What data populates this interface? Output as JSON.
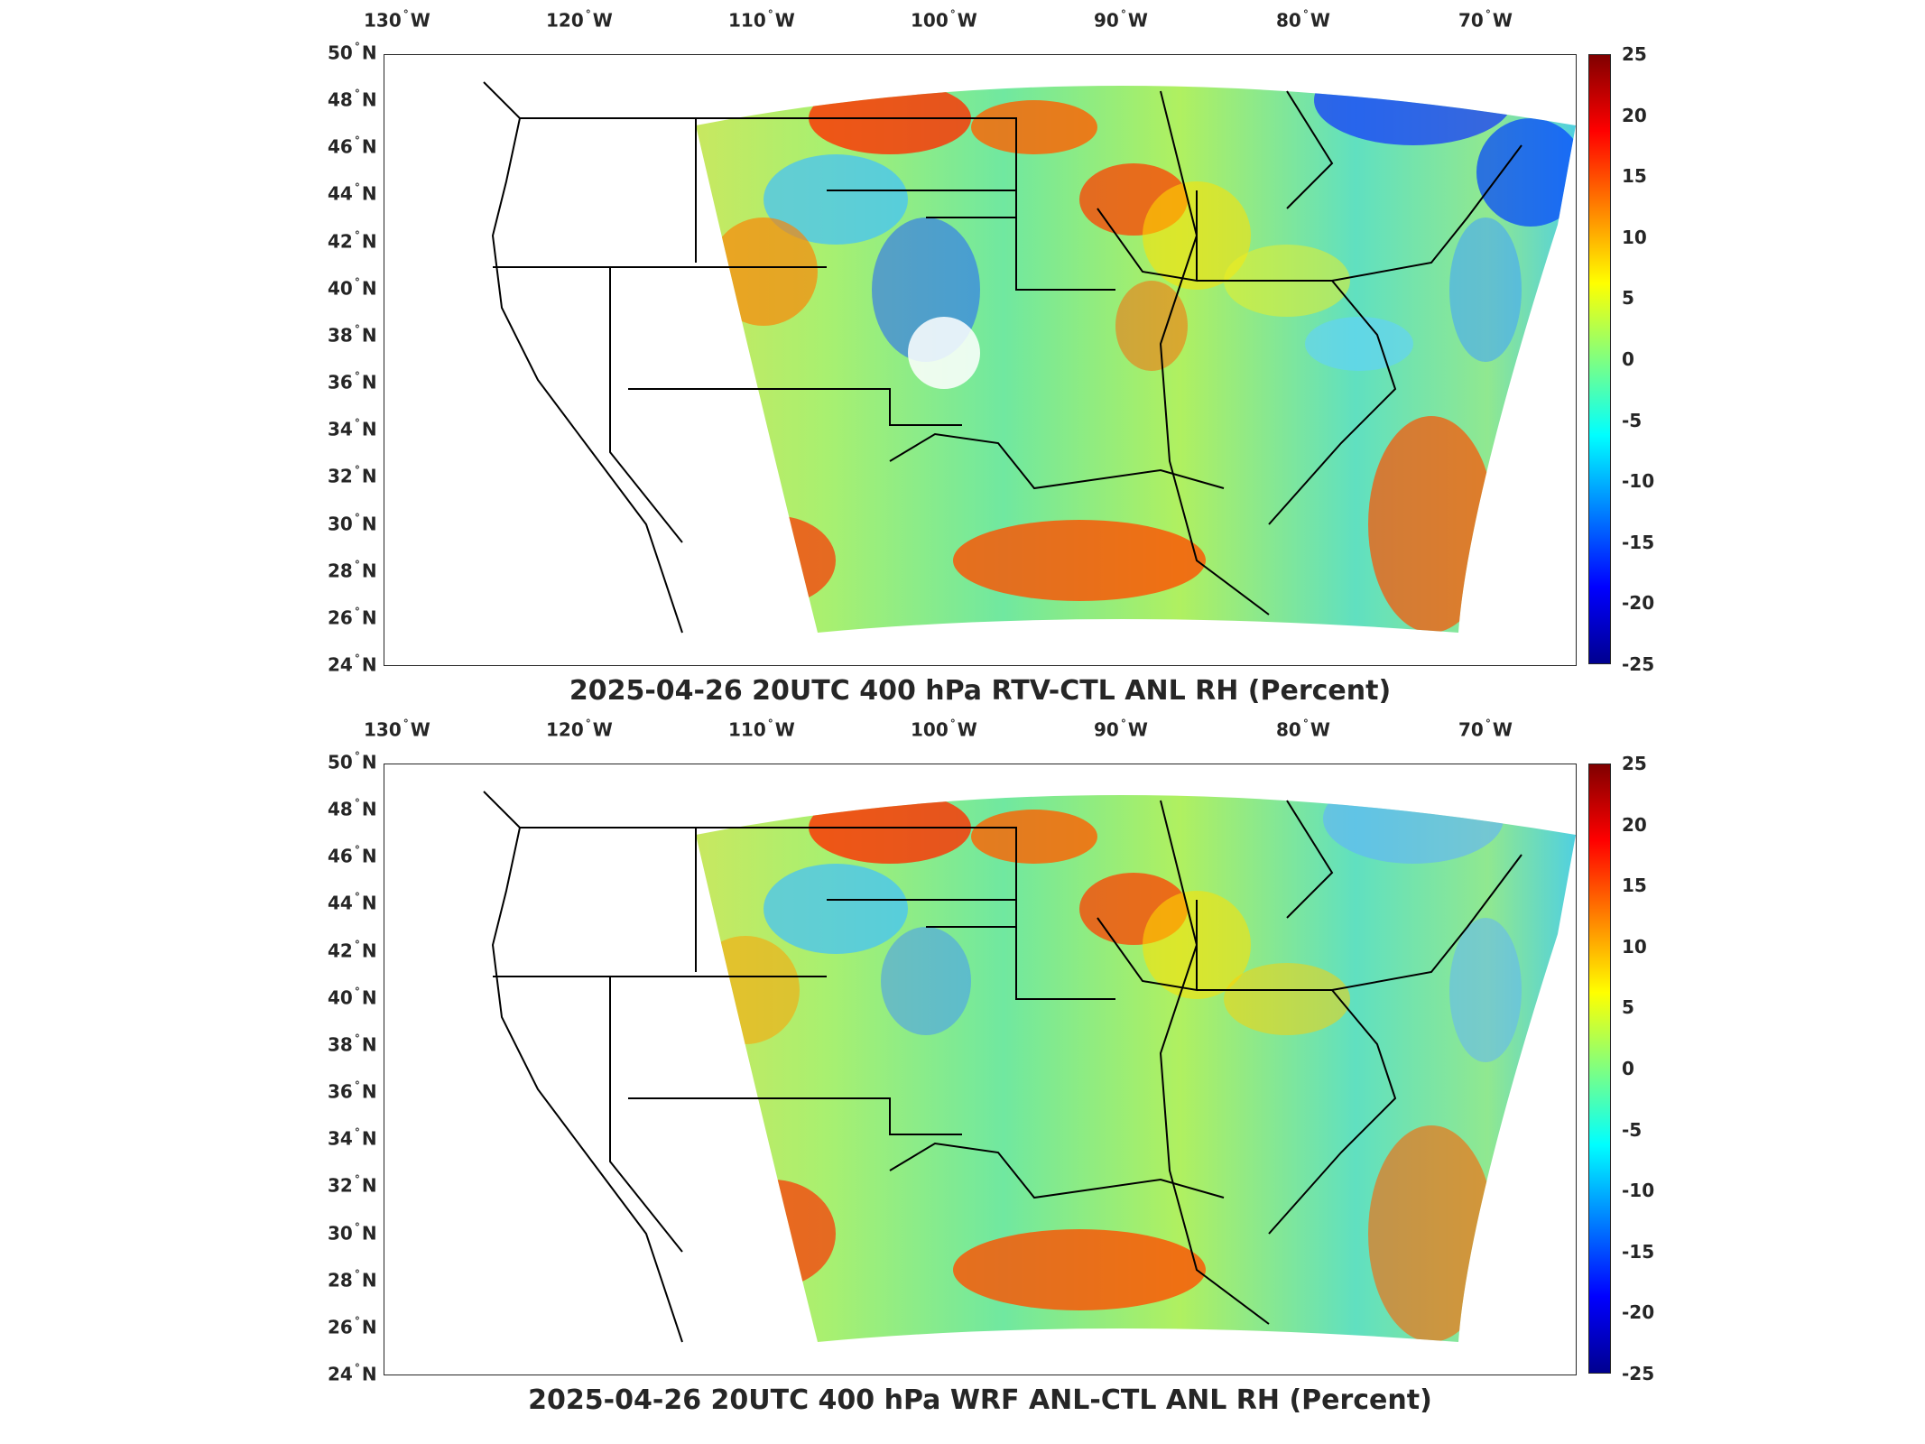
{
  "map_data": {
    "lon_ticks": [
      "130",
      "120",
      "110",
      "100",
      "90",
      "80",
      "70"
    ],
    "lon_suffix": "W",
    "lat_ticks": [
      "50",
      "48",
      "46",
      "44",
      "42",
      "40",
      "38",
      "36",
      "34",
      "32",
      "30",
      "28",
      "26",
      "24"
    ],
    "lat_suffix": "N",
    "colorbar": {
      "ticks": [
        "25",
        "20",
        "15",
        "10",
        "5",
        "0",
        "-5",
        "-10",
        "-15",
        "-20",
        "-25"
      ],
      "range": [
        -25,
        25
      ],
      "colormap": "jet",
      "colors": [
        "#00008f",
        "#0000ff",
        "#0080ff",
        "#00ffff",
        "#80ff80",
        "#ffff00",
        "#ff8000",
        "#ff0000",
        "#800000"
      ]
    },
    "panels": [
      {
        "title": "2025-04-26 20UTC 400 hPa RTV-CTL ANL RH (Percent)"
      },
      {
        "title": "2025-04-26 20UTC 400 hPa WRF ANL-CTL ANL RH (Percent)"
      }
    ]
  }
}
